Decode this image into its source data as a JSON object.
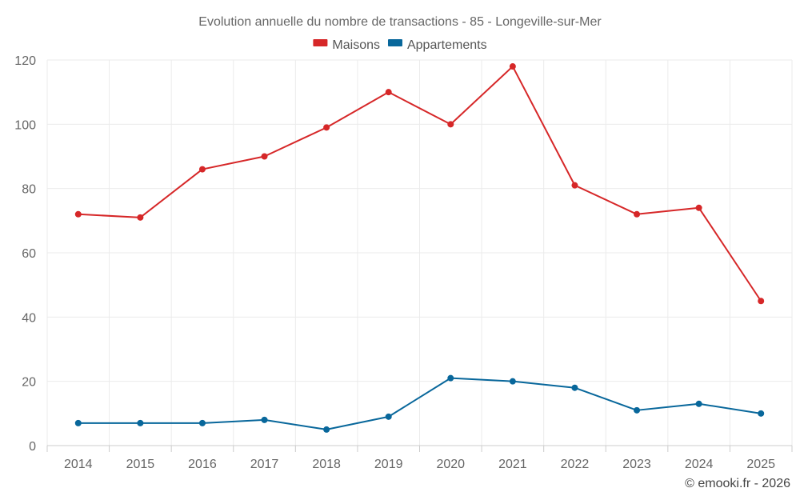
{
  "chart_data": {
    "type": "line",
    "title": "Evolution annuelle du nombre de transactions - 85 - Longeville-sur-Mer",
    "x": [
      "2014",
      "2015",
      "2016",
      "2017",
      "2018",
      "2019",
      "2020",
      "2021",
      "2022",
      "2023",
      "2024",
      "2025"
    ],
    "series": [
      {
        "name": "Maisons",
        "color": "#d62728",
        "values": [
          72,
          71,
          86,
          90,
          99,
          110,
          100,
          118,
          81,
          72,
          74,
          45
        ]
      },
      {
        "name": "Appartements",
        "color": "#08679b",
        "values": [
          7,
          7,
          7,
          8,
          5,
          9,
          21,
          20,
          18,
          11,
          13,
          10
        ]
      }
    ],
    "ylim": [
      0,
      120
    ],
    "yticks": [
      "0",
      "20",
      "40",
      "60",
      "80",
      "100",
      "120"
    ],
    "xlabel": "",
    "ylabel": "",
    "grid": true,
    "legend_position": "top-center"
  },
  "credit": "© emooki.fr - 2026"
}
